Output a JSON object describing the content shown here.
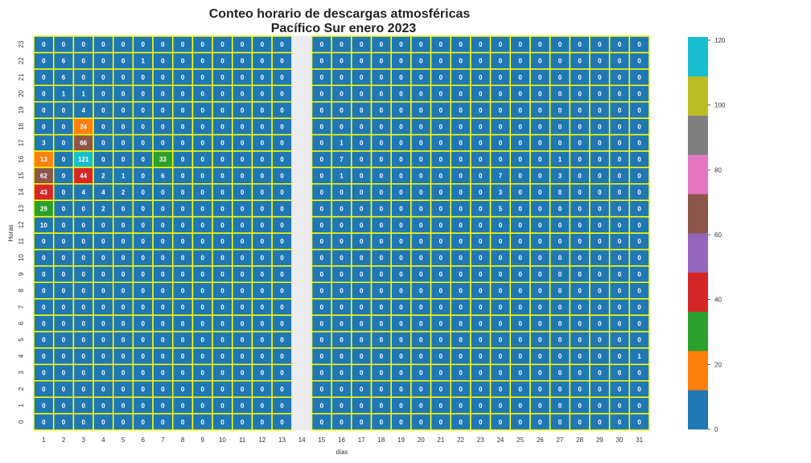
{
  "chart_data": {
    "type": "heatmap",
    "title": [
      "Conteo horario de descargas atmosféricas",
      "Pacífico Sur enero 2023"
    ],
    "xlabel": "días",
    "ylabel": "Horas",
    "x": [
      "1",
      "2",
      "3",
      "4",
      "5",
      "6",
      "7",
      "8",
      "9",
      "10",
      "11",
      "12",
      "13",
      "14",
      "15",
      "16",
      "17",
      "18",
      "19",
      "20",
      "21",
      "22",
      "23",
      "24",
      "25",
      "26",
      "27",
      "28",
      "29",
      "30",
      "31"
    ],
    "y": [
      "0",
      "1",
      "2",
      "3",
      "4",
      "5",
      "6",
      "7",
      "8",
      "9",
      "10",
      "11",
      "12",
      "13",
      "14",
      "15",
      "16",
      "17",
      "18",
      "19",
      "20",
      "21",
      "22",
      "23"
    ],
    "values": [
      [
        0,
        0,
        0,
        0,
        0,
        0,
        0,
        0,
        0,
        0,
        0,
        0,
        0,
        null,
        0,
        0,
        0,
        0,
        0,
        0,
        0,
        0,
        0,
        0,
        0,
        0,
        0,
        0,
        0,
        0,
        0
      ],
      [
        0,
        0,
        0,
        0,
        0,
        0,
        0,
        0,
        0,
        0,
        0,
        0,
        0,
        null,
        0,
        0,
        0,
        0,
        0,
        0,
        0,
        0,
        0,
        0,
        0,
        0,
        0,
        0,
        0,
        0,
        0
      ],
      [
        0,
        0,
        0,
        0,
        0,
        0,
        0,
        0,
        0,
        0,
        0,
        0,
        0,
        null,
        0,
        0,
        0,
        0,
        0,
        0,
        0,
        0,
        0,
        0,
        0,
        0,
        0,
        0,
        0,
        0,
        0
      ],
      [
        0,
        0,
        0,
        0,
        0,
        0,
        0,
        0,
        0,
        0,
        0,
        0,
        0,
        null,
        0,
        0,
        0,
        0,
        0,
        0,
        0,
        0,
        0,
        0,
        0,
        0,
        0,
        0,
        0,
        0,
        0
      ],
      [
        0,
        0,
        0,
        0,
        0,
        0,
        0,
        0,
        0,
        0,
        0,
        0,
        0,
        null,
        0,
        0,
        0,
        0,
        0,
        0,
        0,
        0,
        0,
        0,
        0,
        0,
        0,
        0,
        0,
        0,
        1
      ],
      [
        0,
        0,
        0,
        0,
        0,
        0,
        0,
        0,
        0,
        0,
        0,
        0,
        0,
        null,
        0,
        0,
        0,
        0,
        0,
        0,
        0,
        0,
        0,
        0,
        0,
        0,
        0,
        0,
        0,
        0,
        0
      ],
      [
        0,
        0,
        0,
        0,
        0,
        0,
        0,
        0,
        0,
        0,
        0,
        0,
        0,
        null,
        0,
        0,
        0,
        0,
        0,
        0,
        0,
        0,
        0,
        0,
        0,
        0,
        0,
        0,
        0,
        0,
        0
      ],
      [
        0,
        0,
        0,
        0,
        0,
        0,
        0,
        0,
        0,
        0,
        0,
        0,
        0,
        null,
        0,
        0,
        0,
        0,
        0,
        0,
        0,
        0,
        0,
        0,
        0,
        0,
        0,
        0,
        0,
        0,
        0
      ],
      [
        0,
        0,
        0,
        0,
        0,
        0,
        0,
        0,
        0,
        0,
        0,
        0,
        0,
        null,
        0,
        0,
        0,
        0,
        0,
        0,
        0,
        0,
        0,
        0,
        0,
        0,
        0,
        0,
        0,
        0,
        0
      ],
      [
        0,
        0,
        0,
        0,
        0,
        0,
        0,
        0,
        0,
        0,
        0,
        0,
        0,
        null,
        0,
        0,
        0,
        0,
        0,
        0,
        0,
        0,
        0,
        0,
        0,
        0,
        0,
        0,
        0,
        0,
        0
      ],
      [
        0,
        0,
        0,
        0,
        0,
        0,
        0,
        0,
        0,
        0,
        0,
        0,
        0,
        null,
        0,
        0,
        0,
        0,
        0,
        0,
        0,
        0,
        0,
        0,
        0,
        0,
        0,
        0,
        0,
        0,
        0
      ],
      [
        0,
        0,
        0,
        0,
        0,
        0,
        0,
        0,
        0,
        0,
        0,
        0,
        0,
        null,
        0,
        0,
        0,
        0,
        0,
        0,
        0,
        0,
        0,
        0,
        0,
        0,
        0,
        0,
        0,
        0,
        0
      ],
      [
        10,
        0,
        0,
        0,
        0,
        0,
        0,
        0,
        0,
        0,
        0,
        0,
        0,
        null,
        0,
        0,
        0,
        0,
        0,
        0,
        0,
        0,
        0,
        0,
        0,
        0,
        0,
        0,
        0,
        0,
        0
      ],
      [
        29,
        0,
        0,
        2,
        0,
        0,
        0,
        0,
        0,
        0,
        0,
        0,
        0,
        null,
        0,
        0,
        0,
        0,
        0,
        0,
        0,
        0,
        0,
        5,
        0,
        0,
        0,
        0,
        0,
        0,
        0
      ],
      [
        43,
        0,
        4,
        4,
        2,
        0,
        0,
        0,
        0,
        0,
        0,
        0,
        0,
        null,
        0,
        0,
        0,
        0,
        0,
        0,
        0,
        0,
        0,
        3,
        0,
        0,
        0,
        0,
        0,
        0,
        0
      ],
      [
        62,
        0,
        44,
        2,
        1,
        0,
        6,
        0,
        0,
        0,
        0,
        0,
        0,
        null,
        0,
        1,
        0,
        0,
        0,
        0,
        0,
        0,
        0,
        7,
        0,
        0,
        3,
        0,
        0,
        0,
        0
      ],
      [
        13,
        0,
        121,
        0,
        0,
        0,
        33,
        0,
        0,
        0,
        0,
        0,
        0,
        null,
        0,
        7,
        0,
        0,
        0,
        0,
        0,
        0,
        0,
        0,
        0,
        0,
        1,
        0,
        0,
        0,
        0
      ],
      [
        3,
        0,
        66,
        0,
        0,
        0,
        0,
        0,
        0,
        0,
        0,
        0,
        0,
        null,
        0,
        1,
        0,
        0,
        0,
        0,
        0,
        0,
        0,
        0,
        0,
        0,
        0,
        0,
        0,
        0,
        0
      ],
      [
        0,
        0,
        24,
        0,
        0,
        0,
        0,
        0,
        0,
        0,
        0,
        0,
        0,
        null,
        0,
        0,
        0,
        0,
        0,
        0,
        0,
        0,
        0,
        0,
        0,
        0,
        0,
        0,
        0,
        0,
        0
      ],
      [
        0,
        0,
        4,
        0,
        0,
        0,
        0,
        0,
        0,
        0,
        0,
        0,
        0,
        null,
        0,
        0,
        0,
        0,
        0,
        0,
        0,
        0,
        0,
        0,
        0,
        0,
        0,
        0,
        0,
        0,
        0
      ],
      [
        0,
        1,
        1,
        0,
        0,
        0,
        0,
        0,
        0,
        0,
        0,
        0,
        0,
        null,
        0,
        0,
        0,
        0,
        0,
        0,
        0,
        0,
        0,
        0,
        0,
        0,
        0,
        0,
        0,
        0,
        0
      ],
      [
        0,
        6,
        0,
        0,
        0,
        0,
        0,
        0,
        0,
        0,
        0,
        0,
        0,
        null,
        0,
        0,
        0,
        0,
        0,
        0,
        0,
        0,
        0,
        0,
        0,
        0,
        0,
        0,
        0,
        0,
        0
      ],
      [
        0,
        6,
        0,
        0,
        0,
        1,
        0,
        0,
        0,
        0,
        0,
        0,
        0,
        null,
        0,
        0,
        0,
        0,
        0,
        0,
        0,
        0,
        0,
        0,
        0,
        0,
        0,
        0,
        0,
        0,
        0
      ],
      [
        0,
        0,
        0,
        0,
        0,
        0,
        0,
        0,
        0,
        0,
        0,
        0,
        0,
        null,
        0,
        0,
        0,
        0,
        0,
        0,
        0,
        0,
        0,
        0,
        0,
        0,
        0,
        0,
        0,
        0,
        0
      ]
    ],
    "colorbar": {
      "ticks": [
        0,
        20,
        40,
        60,
        80,
        100,
        120
      ],
      "vmin": 0,
      "vmax": 121,
      "colors": [
        "#1f77b4",
        "#ff7f0e",
        "#2ca02c",
        "#d62728",
        "#9467bd",
        "#8c564b",
        "#e377c2",
        "#7f7f7f",
        "#bcbd22",
        "#17becf"
      ]
    },
    "grid_line_color": "#ffff00",
    "missing_color": "#ebebf0"
  }
}
